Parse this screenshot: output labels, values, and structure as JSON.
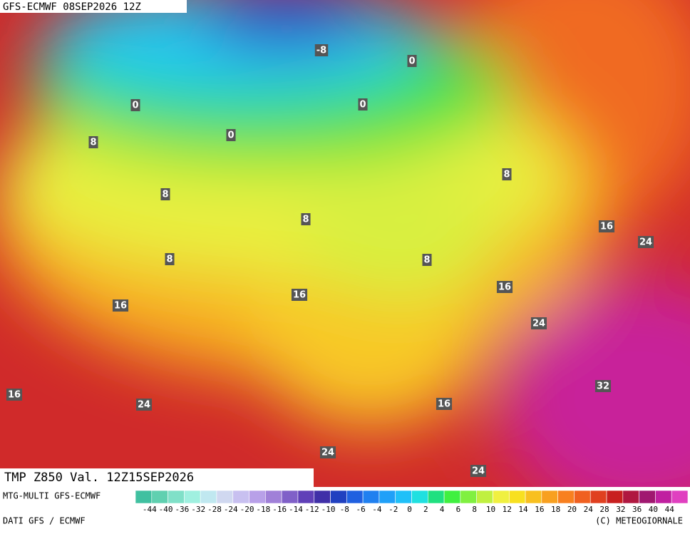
{
  "header": {
    "run_label": "GFS-ECMWF 08SEP2026 12Z"
  },
  "footer": {
    "title": "TMP Z850 Val. 12Z15SEP2026",
    "model": "MTG-MULTI GFS-ECMWF",
    "source": "DATI GFS / ECMWF",
    "credit": "(C) METEOGIORNALE"
  },
  "contour_labels": [
    -8,
    0,
    0,
    0,
    0,
    8,
    8,
    8,
    8,
    16,
    24,
    8,
    8,
    16,
    16,
    16,
    24,
    32,
    16,
    24,
    16,
    24,
    24
  ],
  "legend": {
    "ticks": [
      -44,
      -40,
      -36,
      -32,
      -28,
      -24,
      -20,
      -18,
      -16,
      -14,
      -12,
      -10,
      -8,
      -6,
      -4,
      -2,
      0,
      2,
      4,
      6,
      8,
      10,
      12,
      14,
      16,
      18,
      20,
      24,
      28,
      32,
      36,
      40,
      44
    ],
    "colors": [
      "#40c0a0",
      "#60d0b0",
      "#80e0c8",
      "#a0f0e0",
      "#c0e8f0",
      "#d0d8f0",
      "#c8c0f0",
      "#b8a0e8",
      "#a080d8",
      "#8060c8",
      "#6040b8",
      "#4030a8",
      "#2040c0",
      "#2060e0",
      "#2080f0",
      "#20a0f8",
      "#20c0f8",
      "#20e0e0",
      "#20e080",
      "#40f040",
      "#80f040",
      "#c0f040",
      "#f0f040",
      "#f8e020",
      "#f8c020",
      "#f8a020",
      "#f88020",
      "#f06020",
      "#e04020",
      "#c82020",
      "#b01840",
      "#a01870",
      "#c020a0",
      "#e040c0"
    ]
  }
}
